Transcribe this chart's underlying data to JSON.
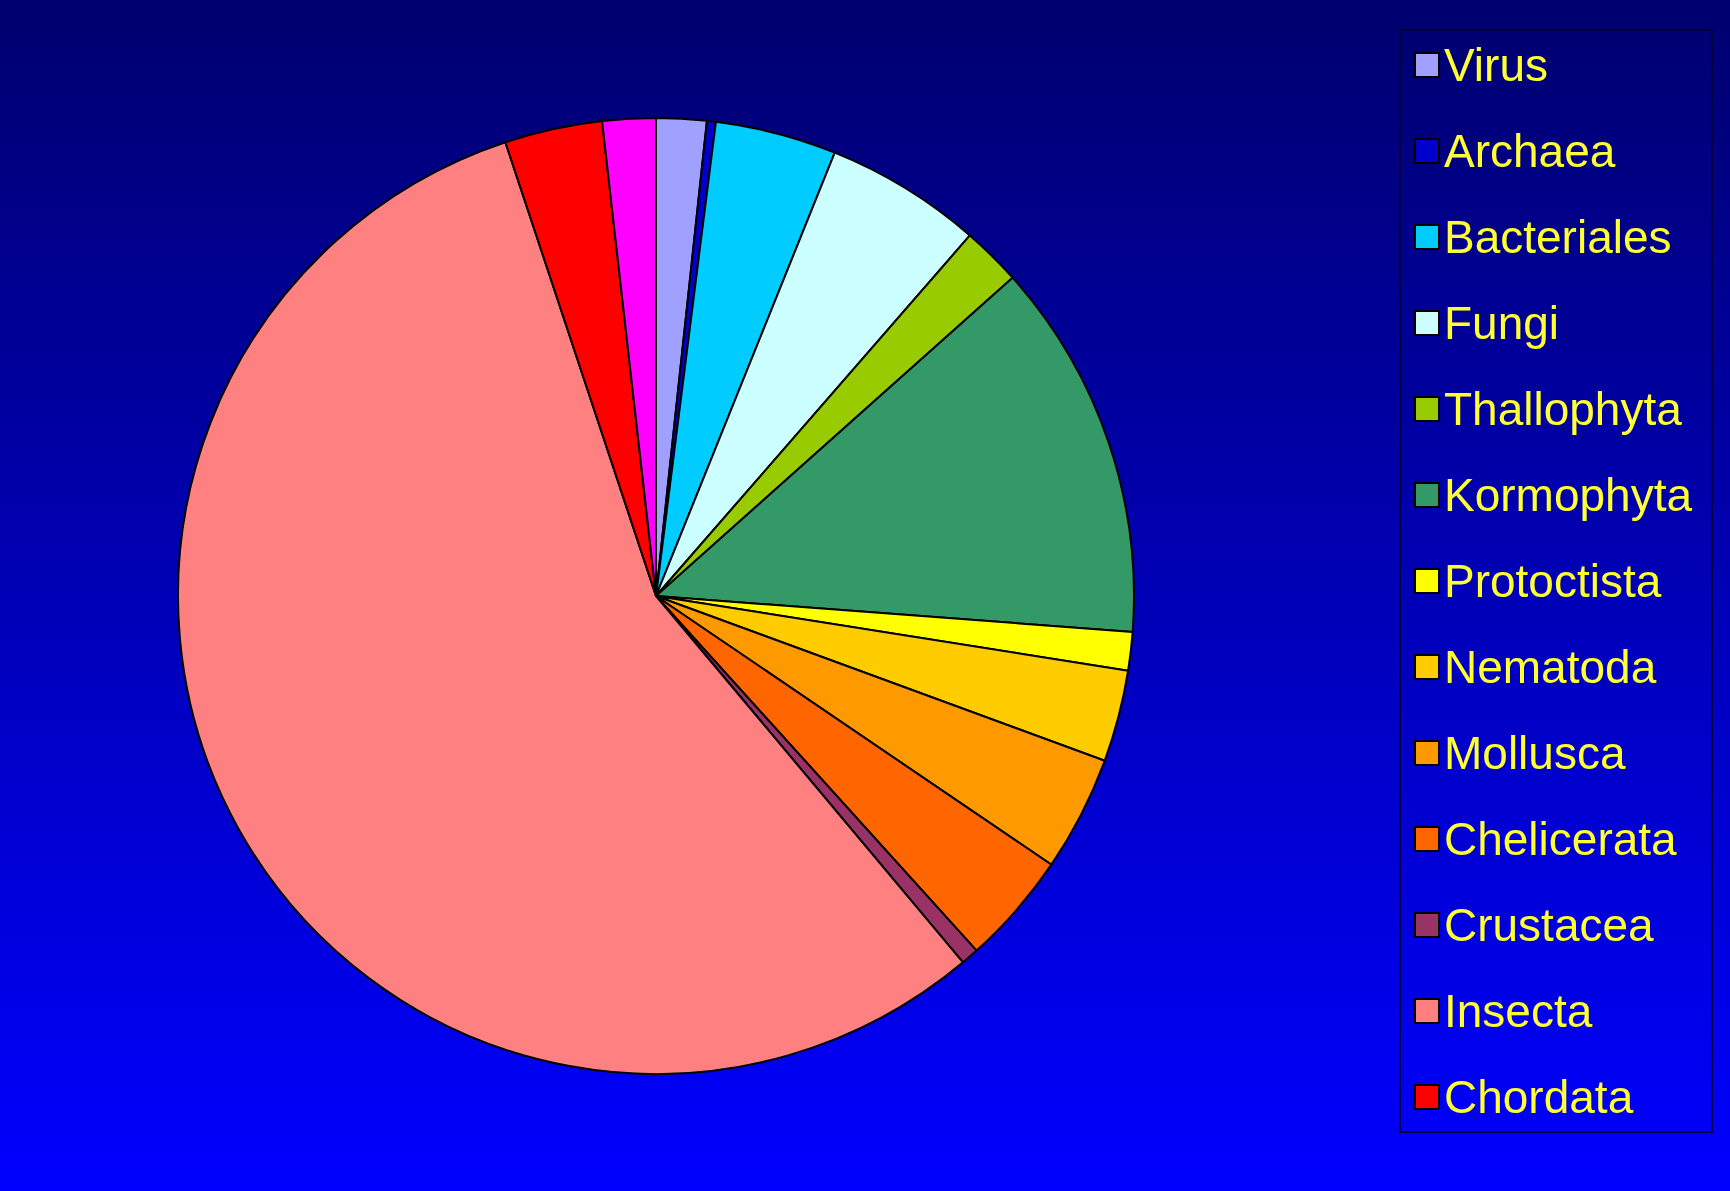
{
  "chart_data": {
    "type": "pie",
    "categories": [
      "Virus",
      "Archaea",
      "Bacteriales",
      "Fungi",
      "Thallophyta",
      "Kormophyta",
      "Protoctista",
      "Nematoda",
      "Mollusca",
      "Chelicerata",
      "Crustacea",
      "Insecta",
      "Chordata",
      null
    ],
    "values": [
      1.7,
      0.3,
      4.1,
      5.3,
      2.0,
      12.8,
      1.3,
      3.1,
      3.9,
      3.8,
      0.6,
      56.0,
      3.3,
      1.8
    ],
    "colors": [
      "#a0a0ff",
      "#0000cc",
      "#00ccff",
      "#ccffff",
      "#99cc00",
      "#339966",
      "#ffff00",
      "#ffcc00",
      "#ff9900",
      "#ff6600",
      "#993366",
      "#ff8080",
      "#ff0000",
      "#ff00ff"
    ],
    "legend": "right"
  }
}
